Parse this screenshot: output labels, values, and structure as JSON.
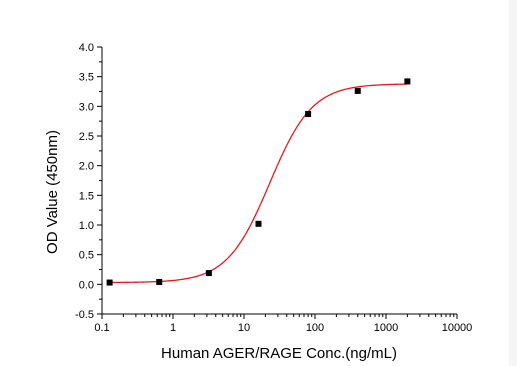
{
  "chart_data": {
    "type": "scatter",
    "title": "",
    "xlabel": "Human AGER/RAGE Conc.(ng/mL)",
    "ylabel": "OD Value (450nm)",
    "xscale": "log",
    "xlim": [
      0.1,
      10000
    ],
    "ylim": [
      -0.5,
      4.0
    ],
    "grid": false,
    "legend": "none",
    "x_ticks": [
      {
        "value": 0.1,
        "label": "0.1"
      },
      {
        "value": 1,
        "label": "1"
      },
      {
        "value": 10,
        "label": "10"
      },
      {
        "value": 100,
        "label": "100"
      },
      {
        "value": 1000,
        "label": "1000"
      },
      {
        "value": 10000,
        "label": "10000"
      }
    ],
    "y_ticks": [
      {
        "value": -0.5,
        "label": "-0.5"
      },
      {
        "value": 0.0,
        "label": "0.0"
      },
      {
        "value": 0.5,
        "label": "0.5"
      },
      {
        "value": 1.0,
        "label": "1.0"
      },
      {
        "value": 1.5,
        "label": "1.5"
      },
      {
        "value": 2.0,
        "label": "2.0"
      },
      {
        "value": 2.5,
        "label": "2.5"
      },
      {
        "value": 3.0,
        "label": "3.0"
      },
      {
        "value": 3.5,
        "label": "3.5"
      },
      {
        "value": 4.0,
        "label": "4.0"
      }
    ],
    "series": [
      {
        "marker": "square",
        "color": "#000000",
        "points": [
          {
            "x": 0.128,
            "y": 0.03
          },
          {
            "x": 0.64,
            "y": 0.04
          },
          {
            "x": 3.2,
            "y": 0.19
          },
          {
            "x": 16,
            "y": 1.02
          },
          {
            "x": 80,
            "y": 2.87
          },
          {
            "x": 400,
            "y": 3.26
          },
          {
            "x": 2000,
            "y": 3.42
          }
        ]
      }
    ],
    "fit_curve": {
      "model": "4PL",
      "color": "#e8191e",
      "bottom": 0.03,
      "top": 3.38,
      "ec50": 23,
      "hill": 1.45,
      "x_range": [
        0.128,
        2000
      ]
    }
  }
}
